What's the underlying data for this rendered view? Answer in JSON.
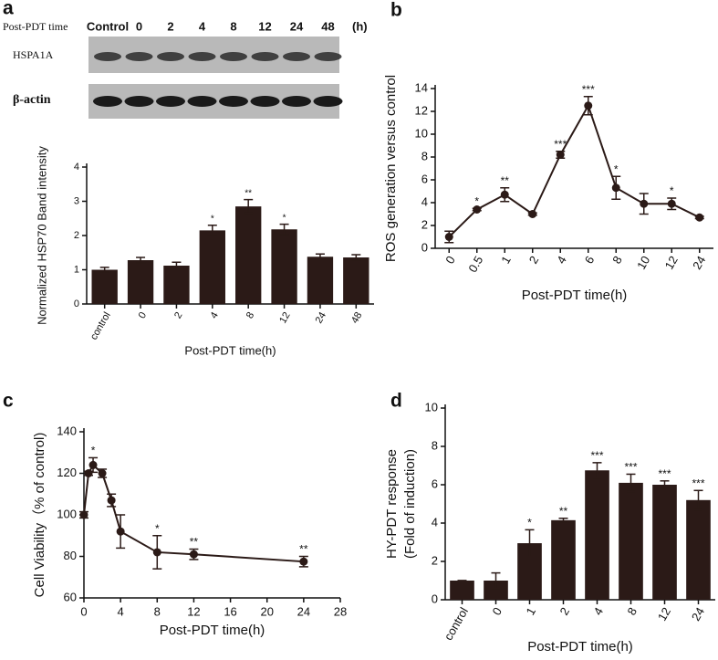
{
  "blot": {
    "time_label": "Post-PDT time",
    "lanes": [
      "Control",
      "0",
      "2",
      "4",
      "8",
      "12",
      "24",
      "48"
    ],
    "unit": "(h)",
    "rows": [
      "HSPA1A",
      "β-actin"
    ]
  },
  "chart_data": [
    {
      "type": "bar",
      "panel": "a",
      "ylabel": [
        "Normalized HSP70 Band intensity"
      ],
      "xlabel": "Post-PDT time(h)",
      "categories": [
        "control",
        "0",
        "2",
        "4",
        "8",
        "12",
        "24",
        "48"
      ],
      "values": [
        1.0,
        1.28,
        1.12,
        2.15,
        2.85,
        2.18,
        1.38,
        1.36
      ],
      "errors": [
        0.07,
        0.08,
        0.1,
        0.15,
        0.2,
        0.15,
        0.08,
        0.08
      ],
      "significance": [
        null,
        null,
        null,
        "*",
        "**",
        "*",
        null,
        null
      ],
      "color": "#2b1a17",
      "ylim": [
        0,
        4
      ],
      "yticks": [
        0,
        1,
        2,
        3,
        4
      ]
    },
    {
      "type": "line",
      "panel": "b",
      "ylabel": [
        "ROS generation versus control"
      ],
      "xlabel": "Post-PDT time(h)",
      "categories": [
        "0",
        "0.5",
        "1",
        "2",
        "4",
        "6",
        "8",
        "10",
        "12",
        "24"
      ],
      "values": [
        1.0,
        3.4,
        4.7,
        3.0,
        8.2,
        12.5,
        5.3,
        3.9,
        3.9,
        2.7
      ],
      "errors": [
        0.5,
        0.1,
        0.6,
        0.1,
        0.3,
        0.8,
        1.0,
        0.9,
        0.5,
        0.1
      ],
      "significance": [
        null,
        "*",
        "**",
        null,
        "***",
        "***",
        "*",
        null,
        "*",
        null
      ],
      "color": "#2b1a17",
      "ylim": [
        0,
        14
      ],
      "yticks": [
        0,
        2,
        4,
        6,
        8,
        10,
        12,
        14
      ]
    },
    {
      "type": "line",
      "panel": "c",
      "ylabel": [
        "Cell Viability（% of control)"
      ],
      "xlabel": "Post-PDT time(h)",
      "x": [
        0,
        0.5,
        1,
        2,
        3,
        4,
        8,
        12,
        24
      ],
      "values": [
        100,
        120,
        124,
        120,
        107,
        92,
        82,
        81,
        77.5
      ],
      "errors": [
        1.5,
        1,
        3.5,
        2,
        3,
        8,
        8,
        2.5,
        2.5
      ],
      "significance": [
        null,
        null,
        "*",
        null,
        null,
        null,
        "*",
        "**",
        "**"
      ],
      "color": "#2b1a17",
      "xlim": [
        0,
        28
      ],
      "xticks": [
        0,
        4,
        8,
        12,
        16,
        20,
        24,
        28
      ],
      "ylim": [
        60,
        140
      ],
      "yticks": [
        60,
        80,
        100,
        120,
        140
      ]
    },
    {
      "type": "bar",
      "panel": "d",
      "ylabel": [
        "HY-PDT response",
        "(Fold of induction)"
      ],
      "xlabel": "Post-PDT time(h)",
      "categories": [
        "control",
        "0",
        "1",
        "2",
        "4",
        "8",
        "12",
        "24"
      ],
      "values": [
        1.0,
        1.0,
        2.95,
        4.15,
        6.75,
        6.1,
        6.0,
        5.2
      ],
      "errors": [
        0,
        0.4,
        0.7,
        0.1,
        0.4,
        0.45,
        0.2,
        0.5
      ],
      "significance": [
        null,
        null,
        "*",
        "**",
        "***",
        "***",
        "***",
        "***"
      ],
      "color": "#2b1a17",
      "ylim": [
        0,
        10
      ],
      "yticks": [
        0,
        2,
        4,
        6,
        8,
        10
      ]
    }
  ]
}
